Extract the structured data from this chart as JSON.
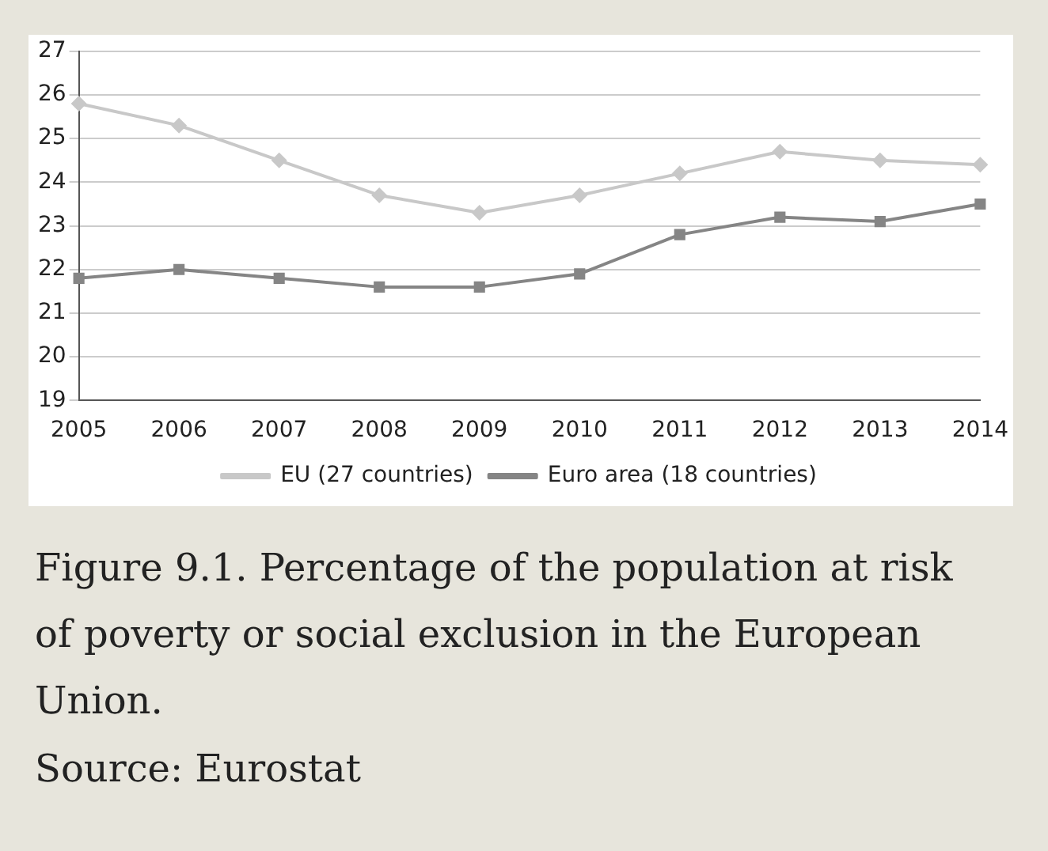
{
  "chart_data": {
    "type": "line",
    "title": "Figure 9.1.  Percentage of the population at risk of poverty or social exclusion in the European Union.",
    "annotations": [
      "Source: Eurostat"
    ],
    "categories": [
      "2005",
      "2006",
      "2007",
      "2008",
      "2009",
      "2010",
      "2011",
      "2012",
      "2013",
      "2014"
    ],
    "series": [
      {
        "name": "EU (27 countries)",
        "color": "#c8c8c8",
        "marker": "diamond",
        "values": [
          25.8,
          25.3,
          24.5,
          23.7,
          23.3,
          23.7,
          24.2,
          24.7,
          24.5,
          24.4
        ]
      },
      {
        "name": "Euro area (18 countries)",
        "color": "#858585",
        "marker": "square",
        "values": [
          21.8,
          22.0,
          21.8,
          21.6,
          21.6,
          21.9,
          22.8,
          23.2,
          23.1,
          23.5
        ]
      }
    ],
    "ylim": [
      19,
      27
    ],
    "yticks": [
      19,
      20,
      21,
      22,
      23,
      24,
      25,
      26,
      27
    ],
    "grid": "y",
    "legend": "bottom"
  }
}
